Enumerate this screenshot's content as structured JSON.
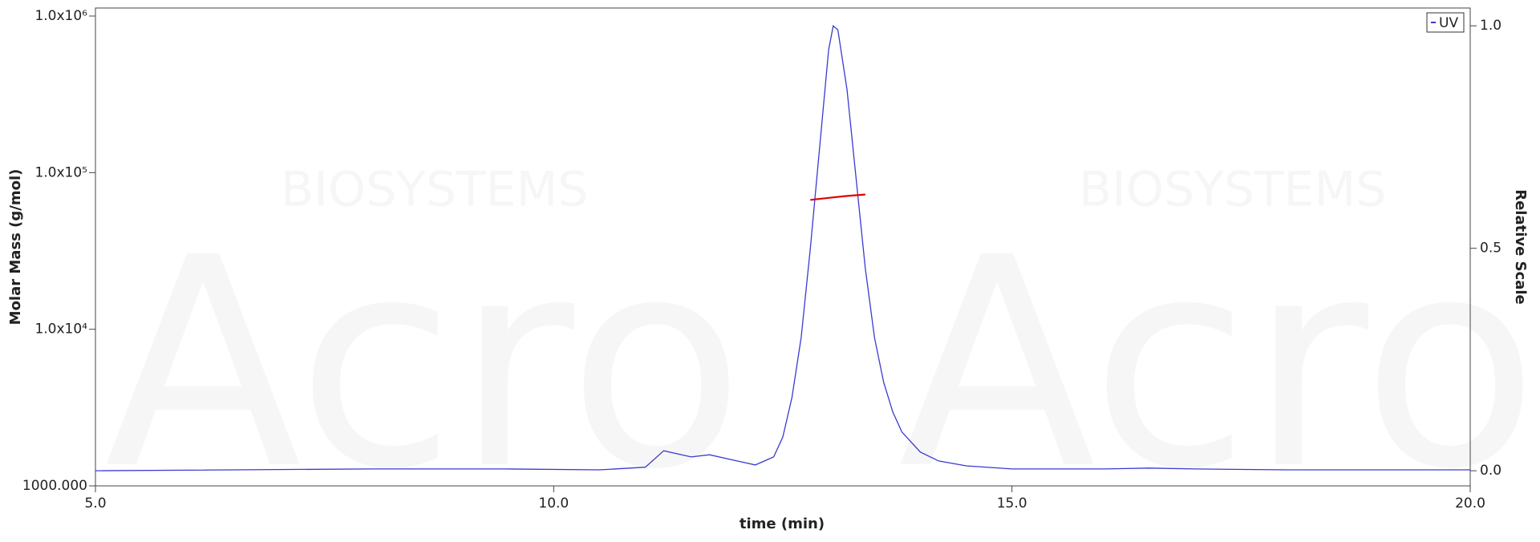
{
  "chart_data": {
    "type": "line",
    "xlabel": "time (min)",
    "ylabel": "Molar Mass (g/mol)",
    "y2label": "Relative Scale",
    "watermark": [
      "Acro",
      "BIOSYSTEMS"
    ],
    "xlim": [
      5,
      20
    ],
    "xticks": [
      {
        "value": 5,
        "label": "5.0"
      },
      {
        "value": 10,
        "label": "10.0"
      },
      {
        "value": 15,
        "label": "15.0"
      },
      {
        "value": 20,
        "label": "20.0"
      }
    ],
    "ylog": true,
    "ylim": [
      1000,
      1125000
    ],
    "yticks": [
      {
        "value": 1000,
        "label": "1000.000"
      },
      {
        "value": 10000,
        "label": "1.0x10⁴"
      },
      {
        "value": 100000,
        "label": "1.0x10⁵"
      },
      {
        "value": 1000000,
        "label": "1.0x10⁶"
      }
    ],
    "y2lim": [
      -0.034,
      1.04
    ],
    "y2ticks": [
      {
        "value": 0,
        "label": "0.0"
      },
      {
        "value": 0.5,
        "label": "0.5"
      },
      {
        "value": 1,
        "label": "1.0"
      }
    ],
    "legend": "upper right",
    "series": [
      {
        "name": "UV",
        "color": "#3a3ad0",
        "axis": "y2",
        "x": [
          5.0,
          8.0,
          9.5,
          10.5,
          11.0,
          11.2,
          11.5,
          11.7,
          12.0,
          12.2,
          12.4,
          12.5,
          12.6,
          12.7,
          12.8,
          12.9,
          13.0,
          13.05,
          13.1,
          13.2,
          13.3,
          13.4,
          13.5,
          13.6,
          13.7,
          13.8,
          14.0,
          14.2,
          14.5,
          15.0,
          16.0,
          16.5,
          17.0,
          18.0,
          20.0
        ],
        "values": [
          0.0,
          0.004,
          0.004,
          0.002,
          0.008,
          0.045,
          0.031,
          0.036,
          0.022,
          0.013,
          0.031,
          0.076,
          0.165,
          0.3,
          0.5,
          0.723,
          0.946,
          1.0,
          0.991,
          0.857,
          0.656,
          0.455,
          0.299,
          0.199,
          0.132,
          0.087,
          0.042,
          0.022,
          0.011,
          0.004,
          0.004,
          0.006,
          0.004,
          0.002,
          0.002
        ]
      },
      {
        "color": "#e00000",
        "axis": "y",
        "x": [
          12.8,
          13.0,
          13.2,
          13.4
        ],
        "values": [
          67000,
          69000,
          71000,
          72500
        ]
      }
    ]
  }
}
